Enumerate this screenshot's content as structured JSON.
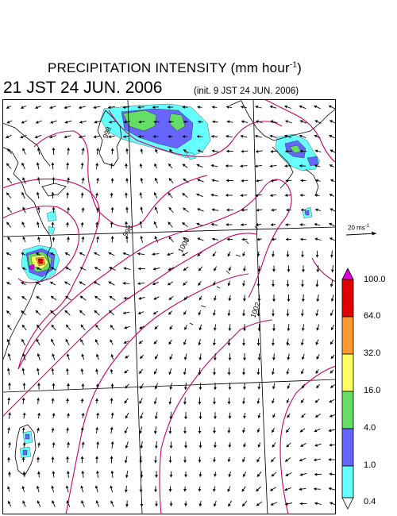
{
  "header": {
    "title_main": "PRECIPITATION INTENSITY (mm hour",
    "title_exponent": "-1",
    "title_close": ")",
    "valid_time": "21 JST 24 JUN. 2006",
    "init_time": "(init. 9 JST 24 JUN. 2006)"
  },
  "wind_scale": {
    "label": "20 ms",
    "exponent": "-1"
  },
  "isobar_labels": [
    "998",
    "1000",
    "1002",
    "998"
  ],
  "colorbar": {
    "labels": [
      "100.0",
      "64.0",
      "32.0",
      "16.0",
      "4.0",
      "1.0",
      "0.4"
    ],
    "colors": [
      "#d900d9",
      "#e00000",
      "#ff9933",
      "#ffff66",
      "#66dd66",
      "#6666ff",
      "#66ffff",
      "#ffffff"
    ]
  },
  "colors": {
    "isobar": "#cc0066",
    "coast": "#000000",
    "grid": "#999999",
    "arrow": "#000000"
  }
}
